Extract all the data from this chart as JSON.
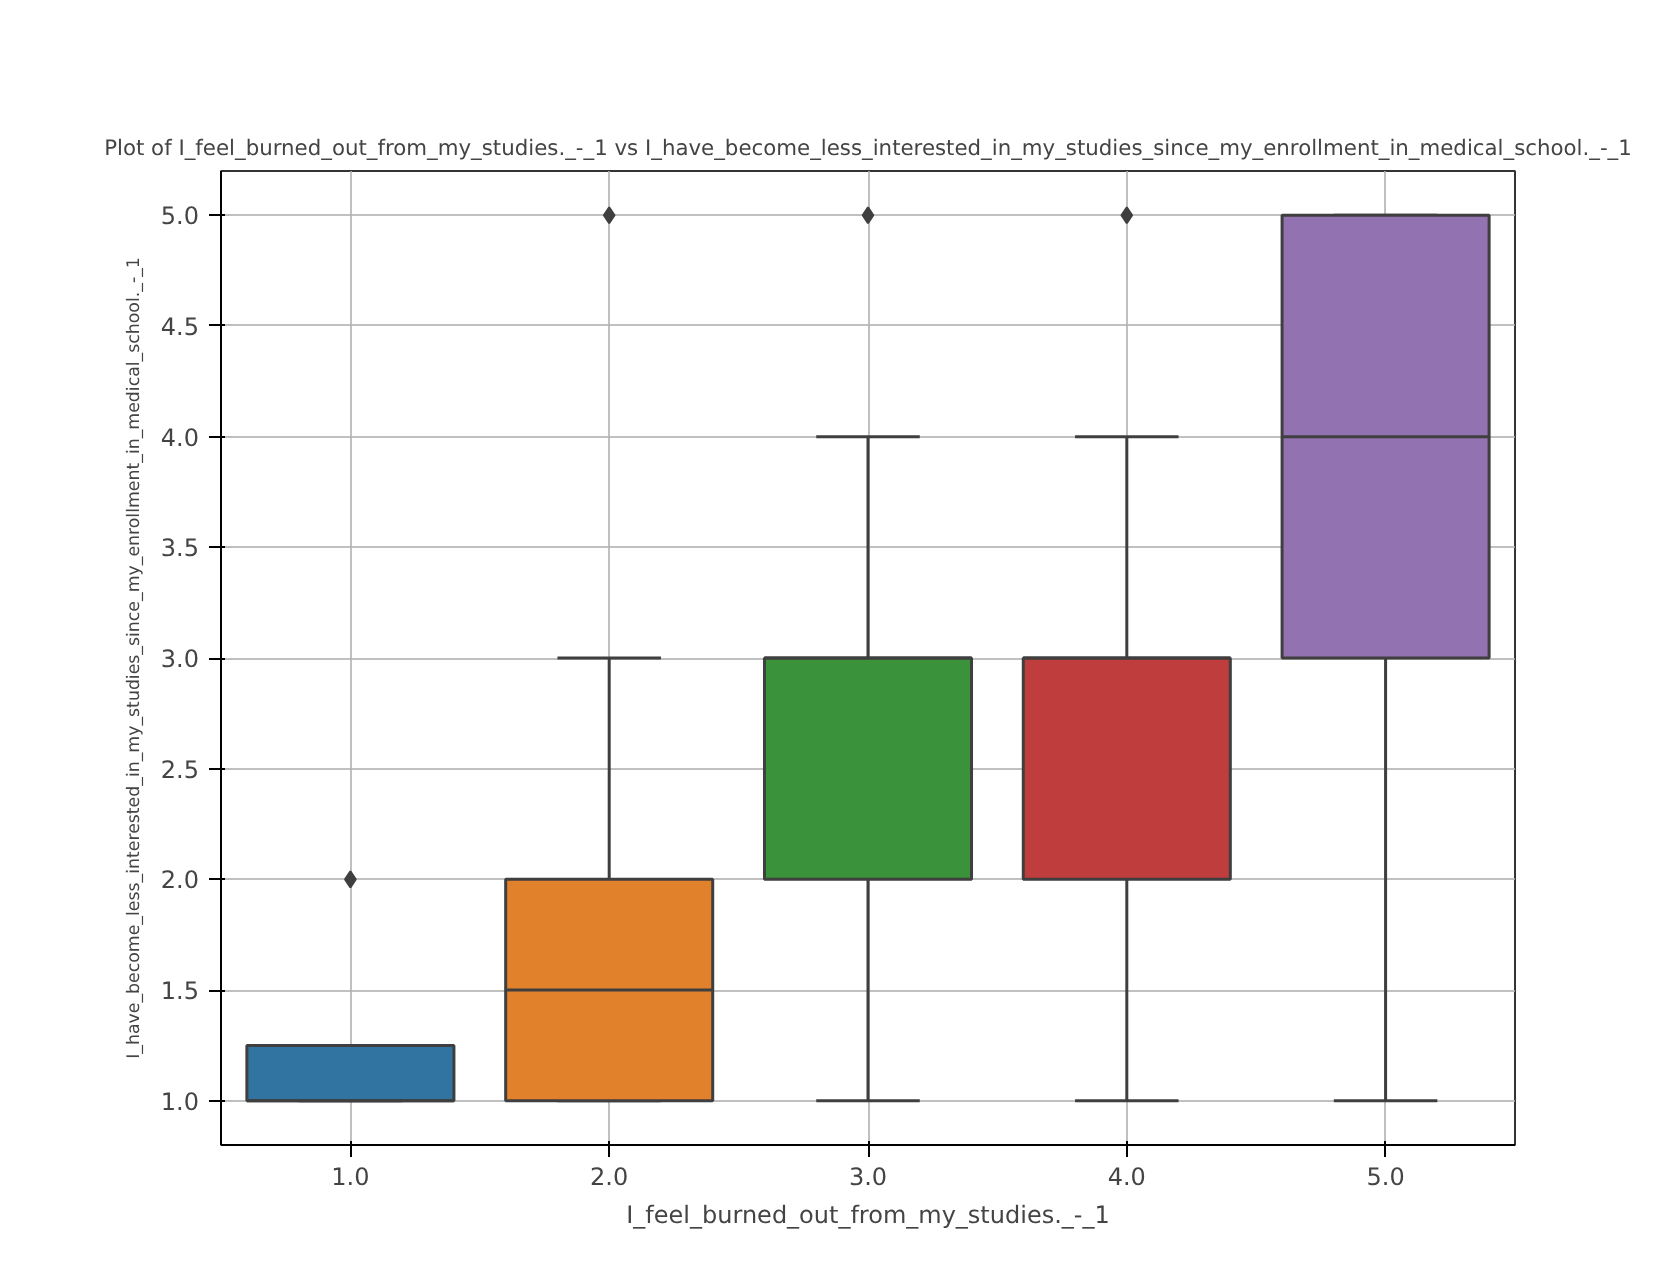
{
  "chart_data": {
    "type": "box",
    "title": "Plot of I_feel_burned_out_from_my_studies._-_1 vs I_have_become_less_interested_in_my_studies_since_my_enrollment_in_medical_school._-_1",
    "xlabel": "I_feel_burned_out_from_my_studies._-_1",
    "ylabel": "I_have_become_less_interested_in_my_studies_since_my_enrollment_in_medical_school._-_1",
    "categories": [
      "1.0",
      "2.0",
      "3.0",
      "4.0",
      "5.0"
    ],
    "colors": [
      "#3274a1",
      "#e1812c",
      "#3a923a",
      "#c03d3e",
      "#9372b2"
    ],
    "boxes": [
      {
        "low": 1.0,
        "q1": 1.0,
        "median": 1.0,
        "q3": 1.25,
        "high": 1.25,
        "outliers": [
          2.0
        ]
      },
      {
        "low": 1.0,
        "q1": 1.0,
        "median": 1.5,
        "q3": 2.0,
        "high": 3.0,
        "outliers": [
          5.0
        ]
      },
      {
        "low": 1.0,
        "q1": 2.0,
        "median": 3.0,
        "q3": 3.0,
        "high": 4.0,
        "outliers": [
          5.0
        ]
      },
      {
        "low": 1.0,
        "q1": 2.0,
        "median": 3.0,
        "q3": 3.0,
        "high": 4.0,
        "outliers": [
          5.0
        ]
      },
      {
        "low": 1.0,
        "q1": 3.0,
        "median": 4.0,
        "q3": 5.0,
        "high": 5.0
      }
    ],
    "ylim": [
      0.8,
      5.2
    ],
    "yticks": [
      {
        "value": 1.0,
        "label": "1.0"
      },
      {
        "value": 1.5,
        "label": "1.5"
      },
      {
        "value": 2.0,
        "label": "2.0"
      },
      {
        "value": 2.5,
        "label": "2.5"
      },
      {
        "value": 3.0,
        "label": "3.0"
      },
      {
        "value": 3.5,
        "label": "3.5"
      },
      {
        "value": 4.0,
        "label": "4.0"
      },
      {
        "value": 4.5,
        "label": "4.5"
      },
      {
        "value": 5.0,
        "label": "5.0"
      }
    ],
    "grid": true
  }
}
